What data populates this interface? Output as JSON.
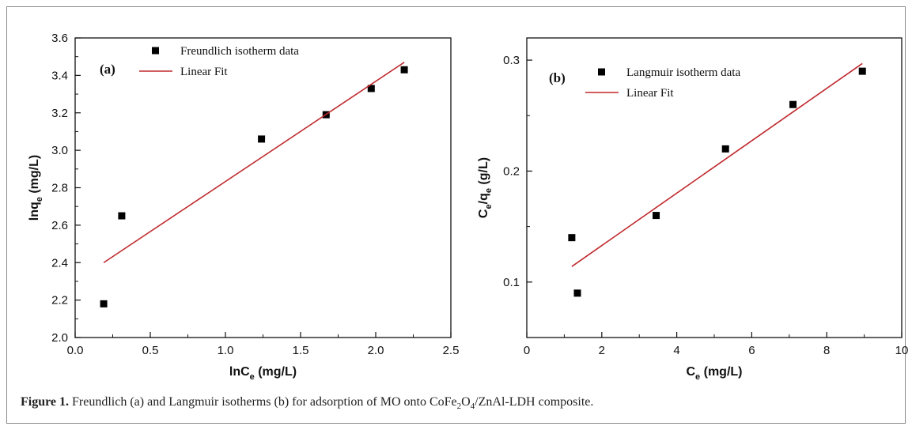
{
  "chart_data": [
    {
      "type": "scatter",
      "panel_label": "(a)",
      "xlabel": {
        "main": "lnC",
        "sub": "e",
        "rest": " (mg/L)"
      },
      "ylabel": {
        "main": "lnq",
        "sub": "e",
        "rest": " (mg/L)"
      },
      "xlim": [
        0.0,
        2.5
      ],
      "ylim": [
        2.0,
        3.6
      ],
      "xticks": [
        "0.0",
        "0.5",
        "1.0",
        "1.5",
        "2.0",
        "2.5"
      ],
      "yticks": [
        "2.0",
        "2.2",
        "2.4",
        "2.6",
        "2.8",
        "3.0",
        "3.2",
        "3.4",
        "3.6"
      ],
      "series": [
        {
          "name": "Freundlich isotherm data",
          "kind": "points",
          "color": "#000000",
          "x": [
            0.19,
            0.31,
            1.24,
            1.67,
            1.97,
            2.19
          ],
          "y": [
            2.18,
            2.65,
            3.06,
            3.19,
            3.33,
            3.43
          ]
        },
        {
          "name": "Linear Fit",
          "kind": "line",
          "color": "#c0282d",
          "x": [
            0.19,
            2.19
          ],
          "y": [
            2.4,
            3.47
          ]
        }
      ],
      "legend_position": "top-right"
    },
    {
      "type": "scatter",
      "panel_label": "(b)",
      "xlabel": {
        "main": "C",
        "sub": "e",
        "rest": " (mg/L)"
      },
      "ylabel": {
        "main": "C",
        "sub": "e",
        "mid": "/q",
        "sub2": "e",
        "rest": " (g/L)"
      },
      "xlim": [
        0,
        10
      ],
      "ylim": [
        0.05,
        0.32
      ],
      "xticks": [
        "0",
        "2",
        "4",
        "6",
        "8",
        "10"
      ],
      "yticks": [
        "0.1",
        "0.2",
        "0.3"
      ],
      "series": [
        {
          "name": "Langmuir isotherm data",
          "kind": "points",
          "color": "#000000",
          "x": [
            1.2,
            1.35,
            3.45,
            5.3,
            7.1,
            8.95
          ],
          "y": [
            0.14,
            0.09,
            0.16,
            0.22,
            0.26,
            0.29
          ]
        },
        {
          "name": "Linear Fit",
          "kind": "line",
          "color": "#c0282d",
          "x": [
            1.2,
            8.95
          ],
          "y": [
            0.114,
            0.297
          ]
        }
      ],
      "legend_position": "top-left"
    }
  ],
  "caption": {
    "label": "Figure 1.",
    "text_before": " Freundlich (a) and Langmuir isotherms (b) for adsorption of MO onto CoFe",
    "sub1": "2",
    "text_mid": "O",
    "sub2": "4",
    "text_after": "/ZnAl-LDH composite."
  }
}
